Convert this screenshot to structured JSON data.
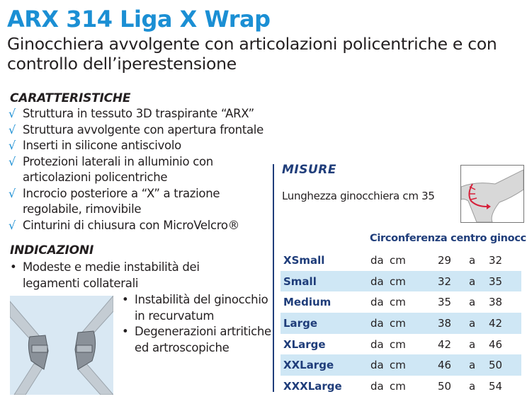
{
  "product": {
    "title": "ARX 314 Liga X Wrap",
    "subtitle": "Ginocchiera  avvolgente con articolazioni policentriche e con controllo dell’iperestensione"
  },
  "features": {
    "heading": "CARATTERISTICHE",
    "check_symbol": "√",
    "items": [
      "Struttura in tessuto 3D traspirante “ARX”",
      "Struttura avvolgente con apertura frontale",
      "Inserti in silicone antiscivolo",
      "Protezioni laterali in alluminio con articolazioni policentriche",
      "Incrocio posteriore a “X” a trazione regolabile, rimovibile",
      "Cinturini di chiusura con MicroVelcro®"
    ]
  },
  "indications": {
    "heading": "INDICAZIONI",
    "bullet_symbol": "•",
    "items": [
      "Modeste e medie instabilità dei legamenti collaterali",
      "Instabilità del ginocchio in recurvatum",
      "Degenerazioni artritiche ed artroscopiche"
    ]
  },
  "sizes": {
    "heading": "MISURE",
    "length_text": "Lunghezza ginocchiera cm 35",
    "circumference_heading": "Circonferenza centro ginocchio",
    "rows": [
      {
        "name": "XSmall",
        "from": "da",
        "unit": "cm",
        "min": "29",
        "to": "a",
        "max": "32"
      },
      {
        "name": "Small",
        "from": "da",
        "unit": "cm",
        "min": "32",
        "to": "a",
        "max": "35"
      },
      {
        "name": "Medium",
        "from": "da",
        "unit": "cm",
        "min": "35",
        "to": "a",
        "max": "38"
      },
      {
        "name": "Large",
        "from": "da",
        "unit": "cm",
        "min": "38",
        "to": "a",
        "max": "42"
      },
      {
        "name": "XLarge",
        "from": "da",
        "unit": "cm",
        "min": "42",
        "to": "a",
        "max": "46"
      },
      {
        "name": "XXLarge",
        "from": "da",
        "unit": "cm",
        "min": "46",
        "to": "a",
        "max": "50"
      },
      {
        "name": "XXXLarge",
        "from": "da",
        "unit": "cm",
        "min": "50",
        "to": "a",
        "max": "54"
      }
    ]
  },
  "colors": {
    "title_blue": "#1b8fd4",
    "navy": "#1f3d7a",
    "row_highlight": "#cfe7f5",
    "text": "#231f20"
  }
}
